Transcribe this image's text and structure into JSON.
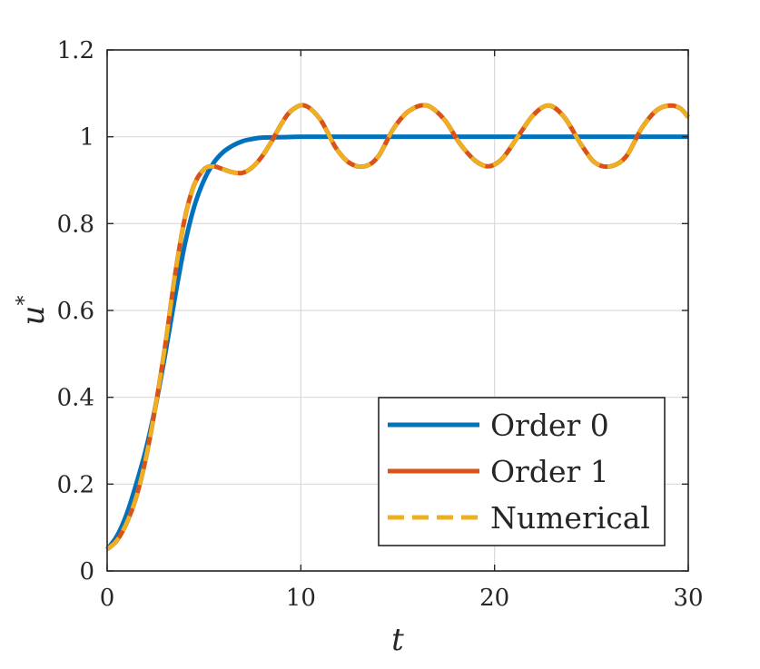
{
  "chart_data": {
    "type": "line",
    "xlabel": "t",
    "ylabel": "u",
    "ylabel_sup": "*",
    "xlim": [
      0,
      30
    ],
    "ylim": [
      0,
      1.2
    ],
    "xticks": [
      0,
      10,
      20,
      30
    ],
    "yticks": [
      0,
      0.2,
      0.4,
      0.6,
      0.8,
      1,
      1.2
    ],
    "xtick_labels": [
      "0",
      "10",
      "20",
      "30"
    ],
    "ytick_labels": [
      "0",
      "0.2",
      "0.4",
      "0.6",
      "0.8",
      "1",
      "1.2"
    ],
    "grid": true,
    "legend_position": "bottom-right",
    "series": [
      {
        "name": "Order 0",
        "color": "#0072BD",
        "style": "solid",
        "x": [
          0,
          0.5,
          1,
          1.5,
          2,
          2.5,
          3,
          3.5,
          4,
          4.5,
          5,
          5.5,
          6,
          6.5,
          7,
          7.5,
          8,
          9,
          10,
          12,
          15,
          20,
          25,
          30
        ],
        "y": [
          0.05,
          0.08,
          0.13,
          0.2,
          0.28,
          0.38,
          0.5,
          0.63,
          0.75,
          0.84,
          0.9,
          0.94,
          0.965,
          0.98,
          0.99,
          0.995,
          0.998,
          0.999,
          1.0,
          1.0,
          1.0,
          1.0,
          1.0,
          1.0
        ]
      },
      {
        "name": "Order 1",
        "color": "#D95319",
        "style": "solid",
        "x": [
          0,
          0.5,
          1,
          1.5,
          2,
          2.5,
          3,
          3.5,
          4,
          4.5,
          5,
          5.5,
          6,
          6.5,
          7,
          7.5,
          8,
          8.5,
          9,
          9.5,
          10.2,
          11,
          11.8,
          12.5,
          13.3,
          14,
          14.8,
          15.6,
          16.5,
          17.4,
          18.2,
          19,
          19.7,
          20.4,
          21.2,
          22,
          22.8,
          23.6,
          24.5,
          25.2,
          26,
          26.8,
          27.6,
          28.4,
          29.1,
          29.6,
          30
        ],
        "y": [
          0.05,
          0.07,
          0.11,
          0.17,
          0.26,
          0.38,
          0.52,
          0.68,
          0.81,
          0.89,
          0.925,
          0.932,
          0.925,
          0.918,
          0.917,
          0.93,
          0.955,
          0.99,
          1.03,
          1.06,
          1.072,
          1.04,
          0.975,
          0.94,
          0.932,
          0.955,
          1.02,
          1.06,
          1.072,
          1.04,
          0.985,
          0.945,
          0.932,
          0.95,
          1.0,
          1.05,
          1.072,
          1.045,
          0.98,
          0.94,
          0.932,
          0.955,
          1.02,
          1.062,
          1.072,
          1.065,
          1.045
        ]
      },
      {
        "name": "Numerical",
        "color": "#EDB120",
        "style": "dashed",
        "x": [
          0,
          0.5,
          1,
          1.5,
          2,
          2.5,
          3,
          3.5,
          4,
          4.5,
          5,
          5.5,
          6,
          6.5,
          7,
          7.5,
          8,
          8.5,
          9,
          9.5,
          10.2,
          11,
          11.8,
          12.5,
          13.3,
          14,
          14.8,
          15.6,
          16.5,
          17.4,
          18.2,
          19,
          19.7,
          20.4,
          21.2,
          22,
          22.8,
          23.6,
          24.5,
          25.2,
          26,
          26.8,
          27.6,
          28.4,
          29.1,
          29.6,
          30
        ],
        "y": [
          0.05,
          0.07,
          0.11,
          0.17,
          0.26,
          0.38,
          0.52,
          0.68,
          0.81,
          0.89,
          0.925,
          0.932,
          0.925,
          0.918,
          0.917,
          0.93,
          0.955,
          0.99,
          1.03,
          1.06,
          1.072,
          1.04,
          0.975,
          0.94,
          0.932,
          0.955,
          1.02,
          1.06,
          1.072,
          1.04,
          0.985,
          0.945,
          0.932,
          0.95,
          1.0,
          1.05,
          1.072,
          1.045,
          0.98,
          0.94,
          0.932,
          0.955,
          1.02,
          1.062,
          1.072,
          1.065,
          1.045
        ]
      }
    ]
  }
}
